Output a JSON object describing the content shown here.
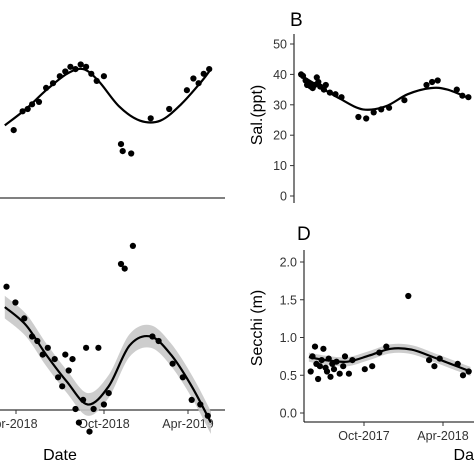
{
  "chart_data": [
    {
      "id": "A",
      "type": "scatter",
      "panel_label": "",
      "xlabel": "",
      "ylabel": "",
      "x_ticks": [],
      "y_ticks": [],
      "ylim": [
        10,
        45
      ],
      "has_ci_band": false,
      "points": [
        {
          "x": "2018-01-10",
          "y": 24.5
        },
        {
          "x": "2018-02-05",
          "y": 28.5
        },
        {
          "x": "2018-02-20",
          "y": 29.0
        },
        {
          "x": "2018-03-05",
          "y": 30.0
        },
        {
          "x": "2018-03-25",
          "y": 30.5
        },
        {
          "x": "2018-04-15",
          "y": 33.5
        },
        {
          "x": "2018-05-05",
          "y": 34.5
        },
        {
          "x": "2018-05-25",
          "y": 36.0
        },
        {
          "x": "2018-06-10",
          "y": 37.0
        },
        {
          "x": "2018-06-25",
          "y": 38.0
        },
        {
          "x": "2018-07-10",
          "y": 37.5
        },
        {
          "x": "2018-07-25",
          "y": 38.5
        },
        {
          "x": "2018-08-10",
          "y": 38.0
        },
        {
          "x": "2018-08-25",
          "y": 36.5
        },
        {
          "x": "2018-09-10",
          "y": 35.0
        },
        {
          "x": "2018-10-01",
          "y": 36.0
        },
        {
          "x": "2018-11-20",
          "y": 21.5
        },
        {
          "x": "2018-11-25",
          "y": 20.0
        },
        {
          "x": "2018-12-20",
          "y": 19.5
        },
        {
          "x": "2019-02-15",
          "y": 27.0
        },
        {
          "x": "2019-04-10",
          "y": 29.0
        },
        {
          "x": "2019-06-01",
          "y": 33.0
        },
        {
          "x": "2019-06-20",
          "y": 35.5
        },
        {
          "x": "2019-07-05",
          "y": 34.5
        },
        {
          "x": "2019-07-20",
          "y": 36.5
        },
        {
          "x": "2019-08-05",
          "y": 37.5
        }
      ],
      "fit": [
        {
          "x": "2017-12-15",
          "y": 25.5
        },
        {
          "x": "2018-02-15",
          "y": 29.0
        },
        {
          "x": "2018-04-15",
          "y": 33.0
        },
        {
          "x": "2018-06-15",
          "y": 36.5
        },
        {
          "x": "2018-08-01",
          "y": 37.5
        },
        {
          "x": "2018-09-15",
          "y": 35.0
        },
        {
          "x": "2018-11-15",
          "y": 29.5
        },
        {
          "x": "2019-01-15",
          "y": 26.5
        },
        {
          "x": "2019-03-15",
          "y": 26.5
        },
        {
          "x": "2019-05-15",
          "y": 30.0
        },
        {
          "x": "2019-07-15",
          "y": 35.0
        },
        {
          "x": "2019-08-10",
          "y": 37.5
        }
      ]
    },
    {
      "id": "B",
      "type": "scatter",
      "panel_label": "B",
      "xlabel": "",
      "ylabel": "Sal.(ppt)",
      "x_ticks": [],
      "y_ticks": [
        "0",
        "10",
        "20",
        "30",
        "40",
        "50"
      ],
      "ylim": [
        0,
        50
      ],
      "has_ci_band": false,
      "points": [
        {
          "x": "2017-05-20",
          "y": 40.0
        },
        {
          "x": "2017-05-25",
          "y": 39.5
        },
        {
          "x": "2017-06-01",
          "y": 38.0
        },
        {
          "x": "2017-06-05",
          "y": 36.5
        },
        {
          "x": "2017-06-10",
          "y": 37.0
        },
        {
          "x": "2017-06-15",
          "y": 36.0
        },
        {
          "x": "2017-06-20",
          "y": 35.5
        },
        {
          "x": "2017-06-25",
          "y": 36.5
        },
        {
          "x": "2017-07-01",
          "y": 39.0
        },
        {
          "x": "2017-07-05",
          "y": 37.5
        },
        {
          "x": "2017-07-10",
          "y": 36.0
        },
        {
          "x": "2017-07-20",
          "y": 35.0
        },
        {
          "x": "2017-07-25",
          "y": 36.5
        },
        {
          "x": "2017-08-05",
          "y": 34.0
        },
        {
          "x": "2017-08-20",
          "y": 33.5
        },
        {
          "x": "2017-09-05",
          "y": 32.5
        },
        {
          "x": "2017-10-20",
          "y": 26.0
        },
        {
          "x": "2017-11-10",
          "y": 25.5
        },
        {
          "x": "2017-11-30",
          "y": 27.5
        },
        {
          "x": "2017-12-20",
          "y": 28.5
        },
        {
          "x": "2018-01-10",
          "y": 29.0
        },
        {
          "x": "2018-02-20",
          "y": 31.5
        },
        {
          "x": "2018-04-20",
          "y": 36.5
        },
        {
          "x": "2018-05-05",
          "y": 37.5
        },
        {
          "x": "2018-05-20",
          "y": 38.0
        },
        {
          "x": "2018-07-10",
          "y": 35.0
        },
        {
          "x": "2018-07-25",
          "y": 33.0
        },
        {
          "x": "2018-08-10",
          "y": 32.5
        }
      ],
      "fit": [
        {
          "x": "2017-05-15",
          "y": 40.0
        },
        {
          "x": "2017-07-01",
          "y": 36.5
        },
        {
          "x": "2017-09-01",
          "y": 32.0
        },
        {
          "x": "2017-11-01",
          "y": 28.5
        },
        {
          "x": "2018-01-01",
          "y": 29.5
        },
        {
          "x": "2018-03-01",
          "y": 33.5
        },
        {
          "x": "2018-05-01",
          "y": 35.5
        },
        {
          "x": "2018-06-15",
          "y": 35.0
        },
        {
          "x": "2018-08-15",
          "y": 32.0
        }
      ]
    },
    {
      "id": "C",
      "type": "scatter",
      "panel_label": "",
      "xlabel": "Date",
      "ylabel": "",
      "x_ticks": [
        "pr-2018",
        "Oct-2018",
        "Apr-2019"
      ],
      "y_ticks": [],
      "ylim": [
        0,
        2
      ],
      "has_ci_band": true,
      "points": [
        {
          "x": "2017-12-20",
          "y": 1.22
        },
        {
          "x": "2018-01-15",
          "y": 1.15
        },
        {
          "x": "2018-02-10",
          "y": 1.08
        },
        {
          "x": "2018-03-05",
          "y": 1.0
        },
        {
          "x": "2018-03-20",
          "y": 0.98
        },
        {
          "x": "2018-04-05",
          "y": 0.92
        },
        {
          "x": "2018-04-20",
          "y": 0.95
        },
        {
          "x": "2018-05-10",
          "y": 0.9
        },
        {
          "x": "2018-05-20",
          "y": 0.82
        },
        {
          "x": "2018-06-01",
          "y": 0.78
        },
        {
          "x": "2018-06-10",
          "y": 0.92
        },
        {
          "x": "2018-06-20",
          "y": 0.85
        },
        {
          "x": "2018-07-01",
          "y": 0.9
        },
        {
          "x": "2018-07-10",
          "y": 0.68
        },
        {
          "x": "2018-07-20",
          "y": 0.62
        },
        {
          "x": "2018-08-01",
          "y": 0.72
        },
        {
          "x": "2018-08-10",
          "y": 0.95
        },
        {
          "x": "2018-08-20",
          "y": 0.58
        },
        {
          "x": "2018-09-01",
          "y": 0.68
        },
        {
          "x": "2018-09-15",
          "y": 0.95
        },
        {
          "x": "2018-10-01",
          "y": 0.7
        },
        {
          "x": "2018-10-15",
          "y": 0.75
        },
        {
          "x": "2018-11-20",
          "y": 1.32
        },
        {
          "x": "2018-12-01",
          "y": 1.3
        },
        {
          "x": "2018-12-25",
          "y": 1.4
        },
        {
          "x": "2019-02-20",
          "y": 1.0
        },
        {
          "x": "2019-03-10",
          "y": 0.98
        },
        {
          "x": "2019-04-20",
          "y": 0.88
        },
        {
          "x": "2019-05-20",
          "y": 0.82
        },
        {
          "x": "2019-06-15",
          "y": 0.72
        },
        {
          "x": "2019-07-10",
          "y": 0.7
        },
        {
          "x": "2019-08-01",
          "y": 0.65
        }
      ],
      "fit": [
        {
          "x": "2017-12-15",
          "y": 1.13
        },
        {
          "x": "2018-02-15",
          "y": 1.05
        },
        {
          "x": "2018-04-15",
          "y": 0.92
        },
        {
          "x": "2018-06-15",
          "y": 0.8
        },
        {
          "x": "2018-08-15",
          "y": 0.7
        },
        {
          "x": "2018-10-15",
          "y": 0.78
        },
        {
          "x": "2018-12-15",
          "y": 0.96
        },
        {
          "x": "2019-02-15",
          "y": 1.0
        },
        {
          "x": "2019-04-15",
          "y": 0.92
        },
        {
          "x": "2019-06-15",
          "y": 0.78
        },
        {
          "x": "2019-08-10",
          "y": 0.62
        }
      ]
    },
    {
      "id": "D",
      "type": "scatter",
      "panel_label": "D",
      "xlabel": "Da",
      "ylabel": "Secchi (m)",
      "x_ticks": [
        "Oct-2017",
        "Apr-2018"
      ],
      "y_ticks": [
        "0.0",
        "0.5",
        "1.0",
        "1.5",
        "2.0"
      ],
      "ylim": [
        0,
        2
      ],
      "has_ci_band": true,
      "points": [
        {
          "x": "2017-05-20",
          "y": 0.55
        },
        {
          "x": "2017-05-25",
          "y": 0.75
        },
        {
          "x": "2017-06-01",
          "y": 0.88
        },
        {
          "x": "2017-06-05",
          "y": 0.65
        },
        {
          "x": "2017-06-10",
          "y": 0.45
        },
        {
          "x": "2017-06-15",
          "y": 0.62
        },
        {
          "x": "2017-06-20",
          "y": 0.7
        },
        {
          "x": "2017-06-25",
          "y": 0.85
        },
        {
          "x": "2017-07-01",
          "y": 0.6
        },
        {
          "x": "2017-07-05",
          "y": 0.55
        },
        {
          "x": "2017-07-10",
          "y": 0.72
        },
        {
          "x": "2017-07-15",
          "y": 0.48
        },
        {
          "x": "2017-07-20",
          "y": 0.65
        },
        {
          "x": "2017-07-25",
          "y": 0.58
        },
        {
          "x": "2017-08-01",
          "y": 0.68
        },
        {
          "x": "2017-08-10",
          "y": 0.52
        },
        {
          "x": "2017-08-20",
          "y": 0.62
        },
        {
          "x": "2017-08-25",
          "y": 0.75
        },
        {
          "x": "2017-09-05",
          "y": 0.52
        },
        {
          "x": "2017-09-15",
          "y": 0.7
        },
        {
          "x": "2017-10-20",
          "y": 0.58
        },
        {
          "x": "2017-11-10",
          "y": 0.62
        },
        {
          "x": "2017-11-30",
          "y": 0.8
        },
        {
          "x": "2017-12-20",
          "y": 0.88
        },
        {
          "x": "2018-02-20",
          "y": 1.55
        },
        {
          "x": "2018-04-20",
          "y": 0.7
        },
        {
          "x": "2018-05-05",
          "y": 0.62
        },
        {
          "x": "2018-05-20",
          "y": 0.72
        },
        {
          "x": "2018-07-10",
          "y": 0.65
        },
        {
          "x": "2018-07-25",
          "y": 0.5
        },
        {
          "x": "2018-08-10",
          "y": 0.55
        }
      ],
      "fit": [
        {
          "x": "2017-05-15",
          "y": 0.74
        },
        {
          "x": "2017-07-01",
          "y": 0.7
        },
        {
          "x": "2017-09-01",
          "y": 0.68
        },
        {
          "x": "2017-11-01",
          "y": 0.76
        },
        {
          "x": "2018-01-01",
          "y": 0.85
        },
        {
          "x": "2018-03-01",
          "y": 0.84
        },
        {
          "x": "2018-05-01",
          "y": 0.74
        },
        {
          "x": "2018-06-15",
          "y": 0.66
        },
        {
          "x": "2018-08-15",
          "y": 0.55
        }
      ]
    }
  ]
}
